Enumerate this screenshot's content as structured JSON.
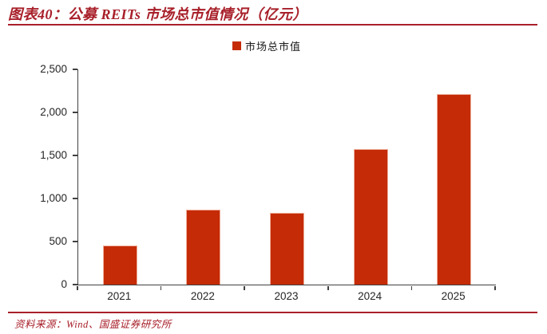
{
  "header": {
    "title": "图表40：公募 REITs 市场总市值情况（亿元）"
  },
  "footer": {
    "source": "资料来源：Wind、国盛证券研究所"
  },
  "colors": {
    "accent_red": "#A8202A",
    "rule_red": "#9E1B26",
    "bar_red": "#C52B07",
    "axis_gray": "#404040",
    "tick_text": "#262626"
  },
  "chart_data": {
    "type": "bar",
    "title": "公募 REITs 市场总市值情况（亿元）",
    "legend_label": "市场总市值",
    "legend_position": "top-center",
    "categories": [
      "2021",
      "2022",
      "2023",
      "2024",
      "2025"
    ],
    "series": [
      {
        "name": "市场总市值",
        "values": [
          450,
          870,
          835,
          1570,
          2210
        ]
      }
    ],
    "xlabel": "",
    "ylabel": "",
    "ylim": [
      0,
      2500
    ],
    "ytick_interval": 500,
    "ytick_labels": [
      "0",
      "500",
      "1,000",
      "1,500",
      "2,000",
      "2,500"
    ],
    "grid": false
  }
}
